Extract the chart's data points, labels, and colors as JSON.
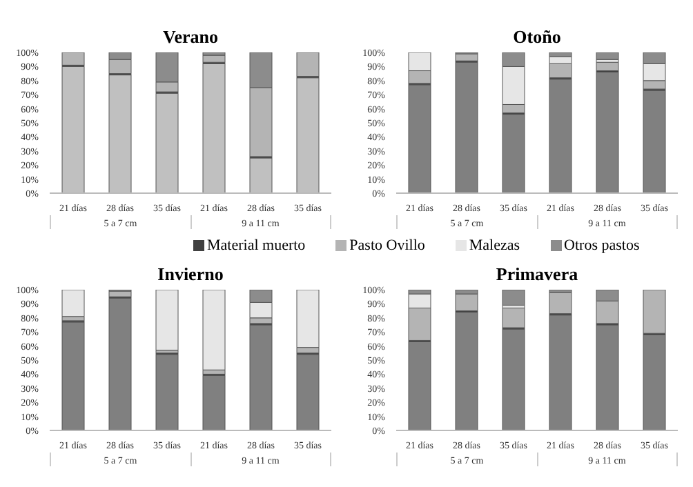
{
  "chart_data": [
    {
      "type": "bar",
      "title": "Verano",
      "stacked": true,
      "categories": [
        "21 días",
        "28 días",
        "35 días",
        "21 días",
        "28 días",
        "35 días"
      ],
      "annotations": [
        "5 a 7 cm",
        "9 a 11 cm"
      ],
      "ylim": [
        0,
        100
      ],
      "yticks": [
        {
          "value": 0,
          "label": "0%"
        },
        {
          "value": 10,
          "label": "10%"
        },
        {
          "value": 20,
          "label": "20%"
        },
        {
          "value": 30,
          "label": "30%"
        },
        {
          "value": 40,
          "label": "40%"
        },
        {
          "value": 50,
          "label": "50%"
        },
        {
          "value": 60,
          "label": "60%"
        },
        {
          "value": 70,
          "label": "70%"
        },
        {
          "value": 80,
          "label": "80%"
        },
        {
          "value": 90,
          "label": "90%"
        },
        {
          "value": 100,
          "label": "100%"
        }
      ],
      "series": [
        {
          "color": "#c0c0c0",
          "values": [
            90,
            84,
            71,
            92,
            25,
            82
          ]
        },
        {
          "color": "#404040",
          "values": [
            1,
            1,
            1,
            1,
            1,
            1
          ]
        },
        {
          "color": "#b4b4b4",
          "values": [
            9,
            10,
            7,
            5,
            49,
            17
          ]
        },
        {
          "color": "#e6e6e6",
          "values": [
            0,
            0,
            0,
            0,
            0,
            0
          ]
        },
        {
          "color": "#8c8c8c",
          "values": [
            0,
            5,
            21,
            2,
            25,
            0
          ]
        }
      ]
    },
    {
      "type": "bar",
      "title": "Otoño",
      "stacked": true,
      "categories": [
        "21 días",
        "28 días",
        "35 días",
        "21 días",
        "28 días",
        "35 días"
      ],
      "annotations": [
        "5 a 7 cm",
        "9 a 11 cm"
      ],
      "ylim": [
        0,
        100
      ],
      "yticks": [
        {
          "value": 0,
          "label": "0%"
        },
        {
          "value": 10,
          "label": "10%"
        },
        {
          "value": 20,
          "label": "20%"
        },
        {
          "value": 30,
          "label": "30%"
        },
        {
          "value": 40,
          "label": "40%"
        },
        {
          "value": 50,
          "label": "50%"
        },
        {
          "value": 60,
          "label": "60%"
        },
        {
          "value": 70,
          "label": "70%"
        },
        {
          "value": 80,
          "label": "80%"
        },
        {
          "value": 90,
          "label": "90%"
        },
        {
          "value": 100,
          "label": "100%"
        }
      ],
      "series": [
        {
          "color": "#808080",
          "values": [
            77,
            93,
            56,
            81,
            86,
            73
          ]
        },
        {
          "color": "#404040",
          "values": [
            1,
            1,
            1,
            1,
            1,
            1
          ]
        },
        {
          "color": "#b4b4b4",
          "values": [
            9,
            5,
            6,
            10,
            6,
            6
          ]
        },
        {
          "color": "#e6e6e6",
          "values": [
            13,
            0,
            27,
            5,
            2,
            12
          ]
        },
        {
          "color": "#8c8c8c",
          "values": [
            0,
            1,
            10,
            3,
            5,
            8
          ]
        }
      ]
    },
    {
      "type": "bar",
      "title": "Invierno",
      "stacked": true,
      "legend": "top",
      "categories": [
        "21 días",
        "28 días",
        "35 días",
        "21 días",
        "28 días",
        "35 días"
      ],
      "annotations": [
        "5 a 7 cm",
        "9 a 11 cm"
      ],
      "ylim": [
        0,
        100
      ],
      "yticks": [
        {
          "value": 0,
          "label": "0%"
        },
        {
          "value": 10,
          "label": "10%"
        },
        {
          "value": 20,
          "label": "20%"
        },
        {
          "value": 30,
          "label": "30%"
        },
        {
          "value": 40,
          "label": "40%"
        },
        {
          "value": 50,
          "label": "50%"
        },
        {
          "value": 60,
          "label": "60%"
        },
        {
          "value": 70,
          "label": "70%"
        },
        {
          "value": 80,
          "label": "80%"
        },
        {
          "value": 90,
          "label": "90%"
        },
        {
          "value": 100,
          "label": "100%"
        }
      ],
      "series": [
        {
          "color": "#808080",
          "values": [
            77,
            94,
            54,
            39,
            75,
            54
          ]
        },
        {
          "name": "Material muerto",
          "color": "#404040",
          "values": [
            1,
            1,
            1,
            1,
            1,
            1
          ]
        },
        {
          "name": "Pasto Ovillo",
          "color": "#b4b4b4",
          "values": [
            3,
            4,
            2,
            3,
            4,
            4
          ]
        },
        {
          "name": "Malezas",
          "color": "#e6e6e6",
          "values": [
            19,
            0,
            43,
            57,
            11,
            41
          ]
        },
        {
          "name": "Otros pastos",
          "color": "#8c8c8c",
          "values": [
            0,
            1,
            0,
            0,
            9,
            0
          ]
        }
      ]
    },
    {
      "type": "bar",
      "title": "Primavera",
      "stacked": true,
      "categories": [
        "21 días",
        "28 días",
        "35 días",
        "21 días",
        "28 días",
        "35 días"
      ],
      "annotations": [
        "5 a 7 cm",
        "9 a 11 cm"
      ],
      "ylim": [
        0,
        100
      ],
      "yticks": [
        {
          "value": 0,
          "label": "0%"
        },
        {
          "value": 10,
          "label": "10%"
        },
        {
          "value": 20,
          "label": "20%"
        },
        {
          "value": 30,
          "label": "30%"
        },
        {
          "value": 40,
          "label": "40%"
        },
        {
          "value": 50,
          "label": "50%"
        },
        {
          "value": 60,
          "label": "60%"
        },
        {
          "value": 70,
          "label": "70%"
        },
        {
          "value": 80,
          "label": "80%"
        },
        {
          "value": 90,
          "label": "90%"
        },
        {
          "value": 100,
          "label": "100%"
        }
      ],
      "series": [
        {
          "color": "#808080",
          "values": [
            63,
            84,
            72,
            82,
            75,
            68
          ]
        },
        {
          "color": "#404040",
          "values": [
            1,
            1,
            1,
            1,
            1,
            1
          ]
        },
        {
          "color": "#b4b4b4",
          "values": [
            23,
            12,
            14,
            15,
            16,
            31
          ]
        },
        {
          "color": "#e6e6e6",
          "values": [
            10,
            0,
            2,
            0,
            0,
            0
          ]
        },
        {
          "color": "#8c8c8c",
          "values": [
            3,
            3,
            11,
            2,
            8,
            0
          ]
        }
      ]
    }
  ]
}
